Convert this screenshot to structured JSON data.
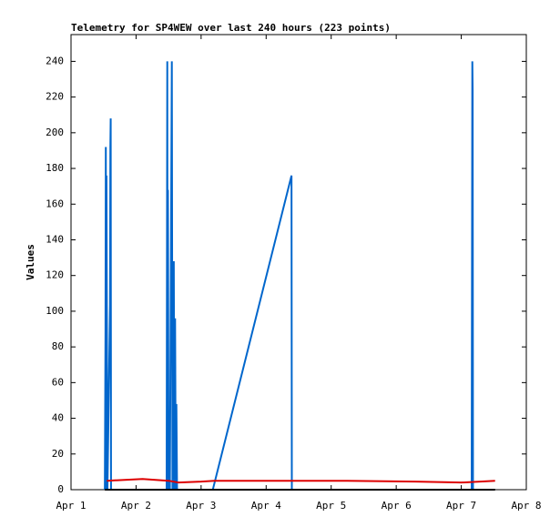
{
  "chart_data": {
    "type": "line",
    "title": "Telemetry for SP4WEW over last 240 hours (223 points)",
    "y_label": "Values",
    "xlim": [
      0,
      7
    ],
    "xticks": [
      {
        "value": 0,
        "label": "Apr 1"
      },
      {
        "value": 1,
        "label": "Apr 2"
      },
      {
        "value": 2,
        "label": "Apr 3"
      },
      {
        "value": 3,
        "label": "Apr 4"
      },
      {
        "value": 4,
        "label": "Apr 5"
      },
      {
        "value": 5,
        "label": "Apr 6"
      },
      {
        "value": 6,
        "label": "Apr 7"
      },
      {
        "value": 7,
        "label": "Apr 8"
      }
    ],
    "ylim": [
      0,
      255
    ],
    "yticks": [
      0,
      20,
      40,
      60,
      80,
      100,
      120,
      140,
      160,
      180,
      200,
      220,
      240
    ],
    "series": [
      {
        "color": "#0066cc",
        "x": [
          0.52,
          0.53,
          0.535,
          0.54,
          0.545,
          0.55,
          0.56,
          0.6,
          0.605,
          0.61,
          0.615,
          1.47,
          1.48,
          1.485,
          1.49,
          1.5,
          1.51,
          1.52,
          1.55,
          1.56,
          1.565,
          1.57,
          1.58,
          1.59,
          1.6,
          1.61,
          1.62,
          1.63,
          2.18,
          3.39,
          3.395,
          6.16,
          6.17,
          6.175,
          6.18
        ],
        "values": [
          0,
          88,
          192,
          0,
          176,
          112,
          0,
          104,
          192,
          208,
          0,
          0,
          240,
          0,
          168,
          0,
          40,
          0,
          240,
          0,
          80,
          0,
          128,
          0,
          96,
          0,
          48,
          0,
          0,
          176,
          0,
          0,
          240,
          224,
          0
        ]
      },
      {
        "color": "#dd0000",
        "x": [
          0.55,
          1.1,
          1.5,
          1.65,
          2.0,
          2.2,
          4.2,
          5.3,
          6.0,
          6.52
        ],
        "values": [
          5,
          6,
          5,
          4,
          4.5,
          5,
          5,
          4.5,
          4,
          5
        ]
      },
      {
        "color": "#000000",
        "x": [
          0.52,
          6.52
        ],
        "values": [
          0,
          0
        ]
      }
    ]
  }
}
